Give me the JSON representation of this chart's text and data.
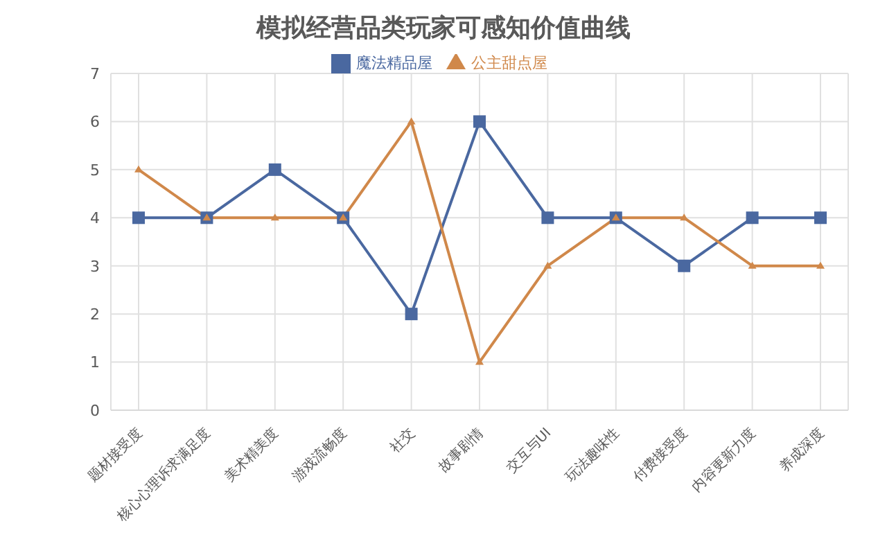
{
  "chart_data": {
    "type": "line",
    "title": "模拟经营品类玩家可感知价值曲线",
    "categories": [
      "题材接受度",
      "核心心理诉求满足度",
      "美术精美度",
      "游戏流畅度",
      "社交",
      "故事剧情",
      "交互与UI",
      "玩法趣味性",
      "付费接受度",
      "内容更新力度",
      "养成深度"
    ],
    "series": [
      {
        "name": "魔法精品屋",
        "color": "#4a68a0",
        "marker": "square",
        "values": [
          4,
          4,
          5,
          4,
          2,
          6,
          4,
          4,
          3,
          4,
          4
        ]
      },
      {
        "name": "公主甜点屋",
        "color": "#d0884a",
        "marker": "triangle",
        "values": [
          5,
          4,
          4,
          4,
          6,
          1,
          3,
          4,
          4,
          3,
          3
        ]
      }
    ],
    "ylim": [
      0,
      7
    ],
    "yticks": [
      0,
      1,
      2,
      3,
      4,
      5,
      6,
      7
    ],
    "grid": true,
    "legend": "top"
  }
}
